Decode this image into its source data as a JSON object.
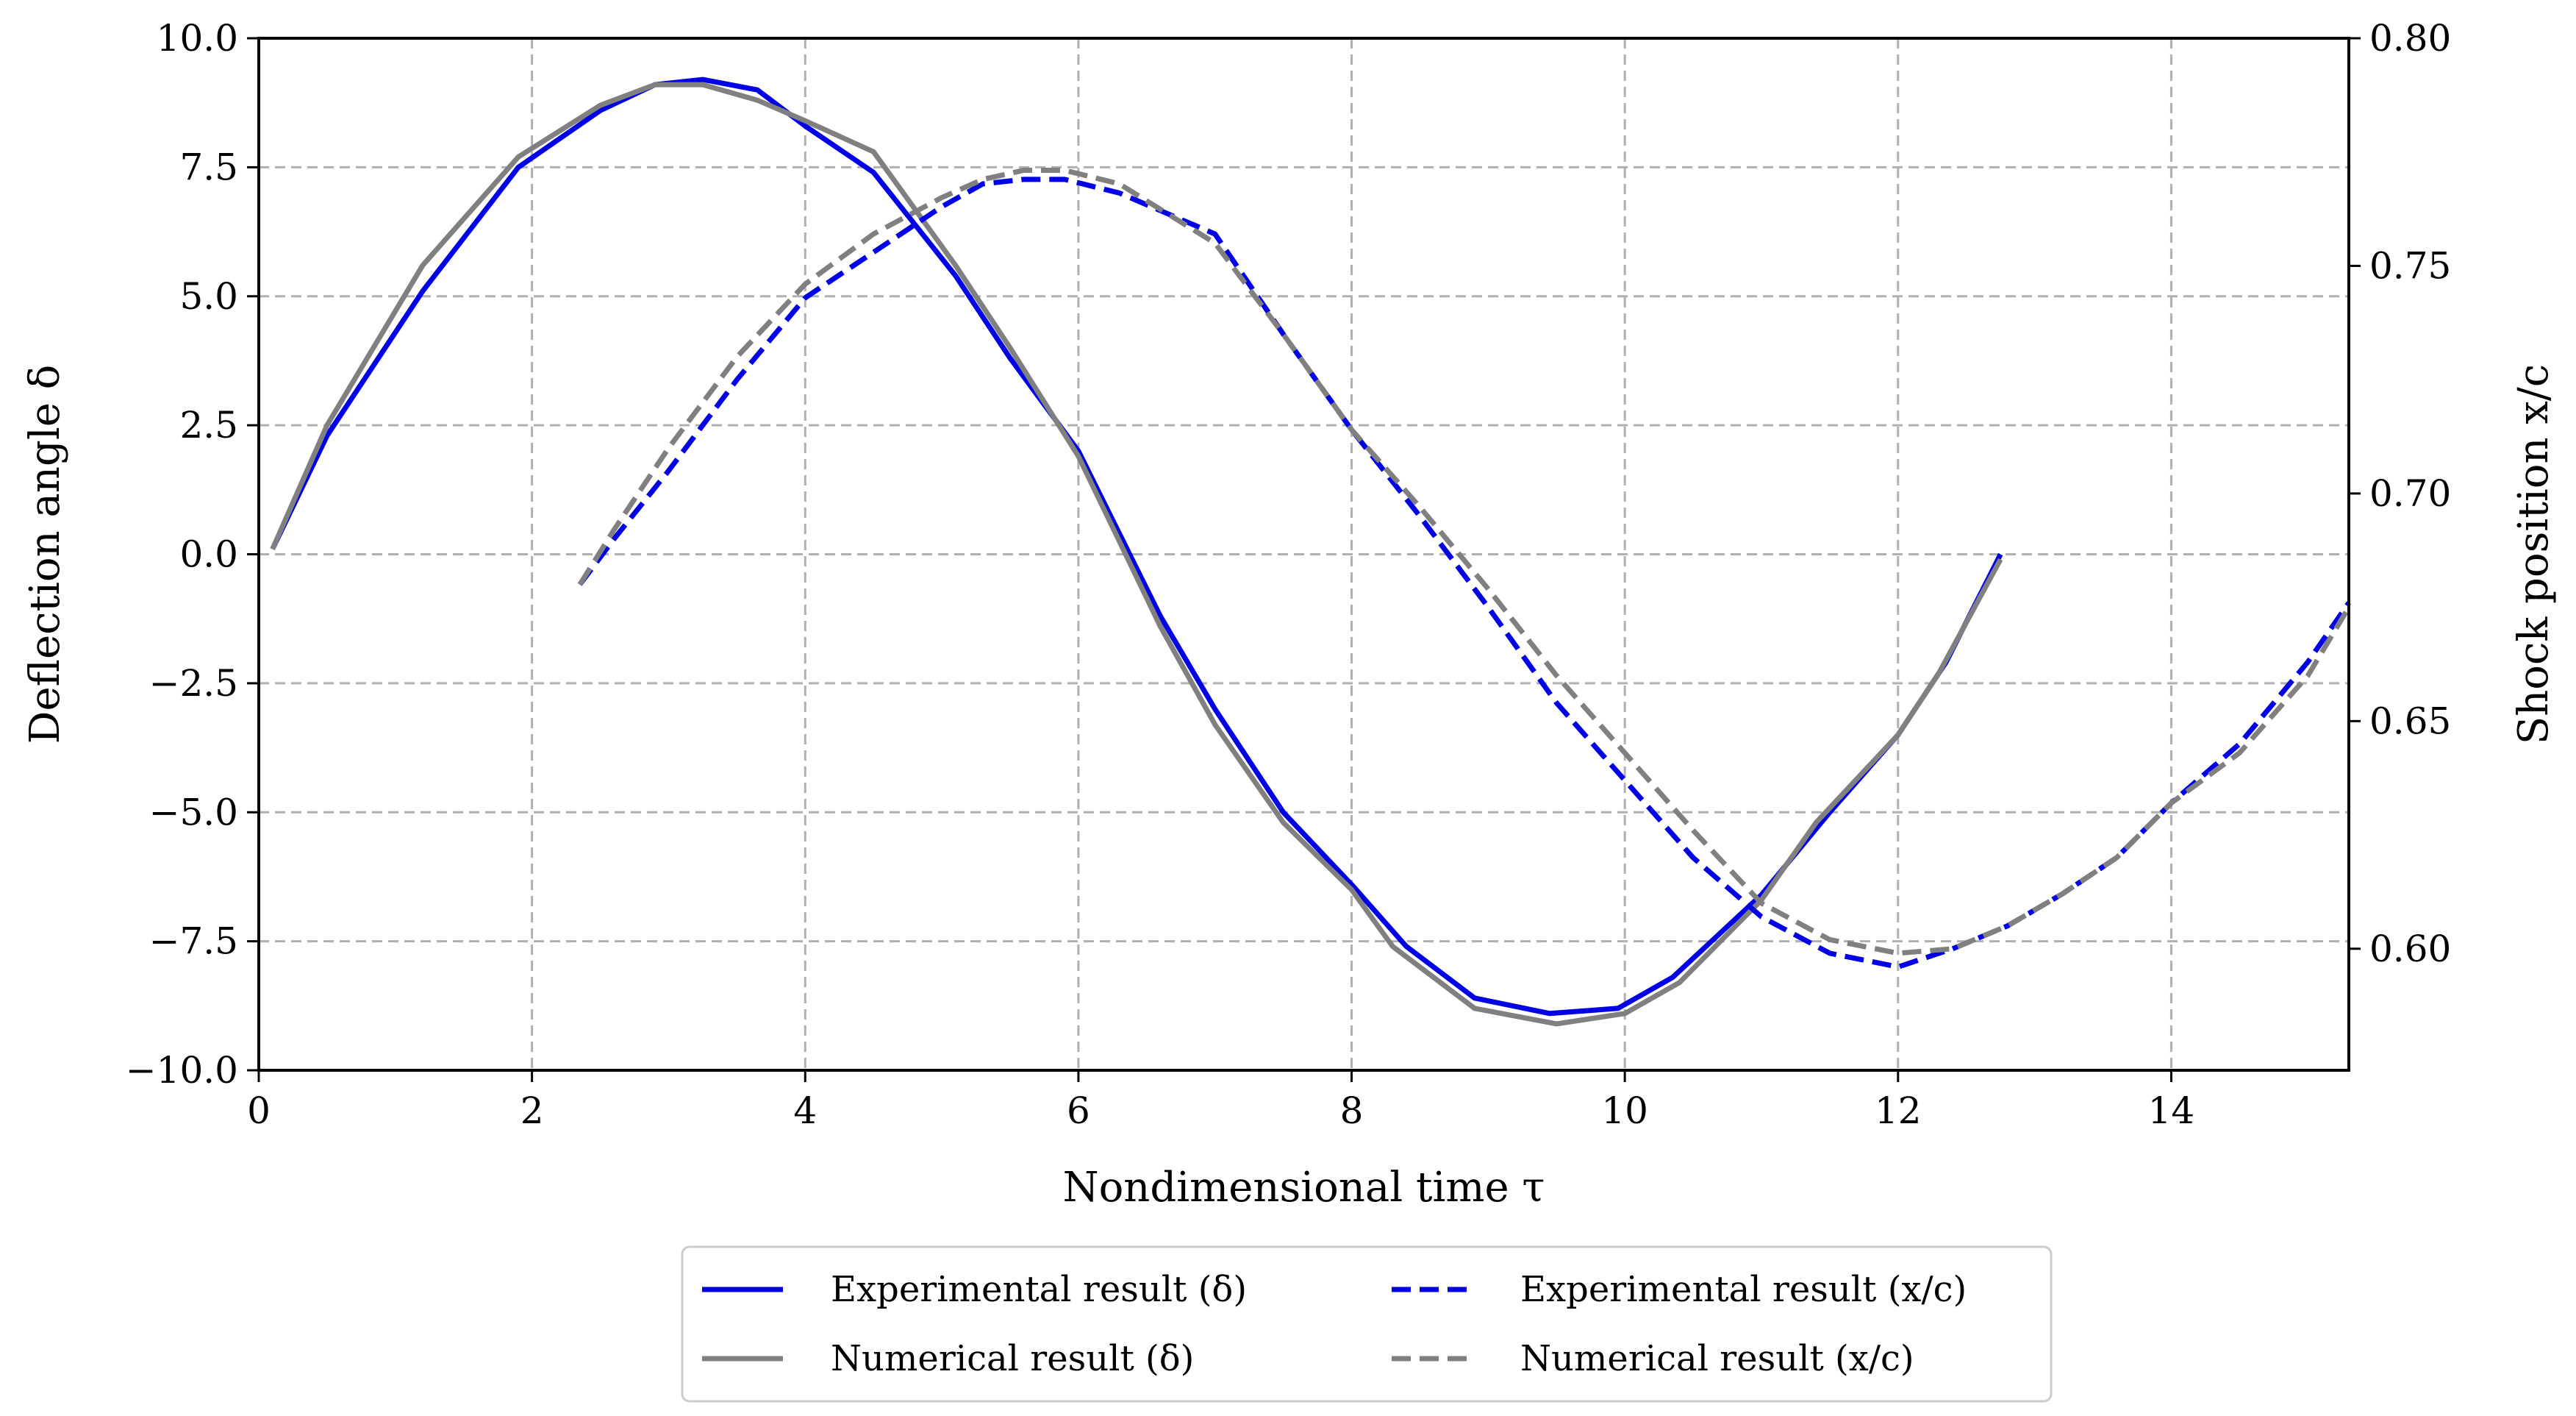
{
  "chart_data": {
    "type": "line",
    "xlabel": "Nondimensional time τ",
    "ylabel_left": "Deflection angle δ",
    "ylabel_right": "Shock position x/c",
    "xlim": [
      0,
      15.3
    ],
    "ylim_left": [
      -10,
      10
    ],
    "ylim_right": [
      0.5733,
      0.8
    ],
    "grid": true,
    "legend_position": "bottom-center",
    "x_ticks": [
      "0",
      "2",
      "4",
      "6",
      "8",
      "10",
      "12",
      "14"
    ],
    "y_left_ticks": [
      "10.0",
      "7.5",
      "5.0",
      "2.5",
      "0.0",
      "−2.5",
      "−5.0",
      "−7.5",
      "−10.0"
    ],
    "y_right_ticks": [
      "0.80",
      "0.75",
      "0.70",
      "0.65",
      "0.60"
    ],
    "series": [
      {
        "name": "Experimental result (δ)",
        "axis": "left",
        "color": "#0000e6",
        "style": "solid",
        "x": [
          0.1,
          0.5,
          1.2,
          1.9,
          2.5,
          2.9,
          3.25,
          3.65,
          4.0,
          4.5,
          5.1,
          5.5,
          6.0,
          6.6,
          7.0,
          7.5,
          8.0,
          8.4,
          8.9,
          9.45,
          9.95,
          10.35,
          11.0,
          11.5,
          12.0,
          12.35,
          12.75
        ],
        "values": [
          0.1,
          2.3,
          5.1,
          7.5,
          8.6,
          9.1,
          9.2,
          9.0,
          8.3,
          7.4,
          5.4,
          3.8,
          2.0,
          -1.2,
          -3.0,
          -5.0,
          -6.4,
          -7.6,
          -8.6,
          -8.9,
          -8.8,
          -8.2,
          -6.6,
          -5.0,
          -3.5,
          -2.1,
          0.0
        ]
      },
      {
        "name": "Numerical result (δ)",
        "axis": "left",
        "color": "#808080",
        "style": "solid",
        "x": [
          0.1,
          0.5,
          1.2,
          1.9,
          2.5,
          2.9,
          3.25,
          3.65,
          4.0,
          4.5,
          5.1,
          5.5,
          6.0,
          6.6,
          7.0,
          7.5,
          8.0,
          8.3,
          8.9,
          9.5,
          10.0,
          10.4,
          11.0,
          11.4,
          12.0,
          12.3,
          12.75
        ],
        "values": [
          0.1,
          2.5,
          5.6,
          7.7,
          8.7,
          9.1,
          9.1,
          8.8,
          8.4,
          7.8,
          5.6,
          4.0,
          1.9,
          -1.4,
          -3.3,
          -5.2,
          -6.5,
          -7.6,
          -8.8,
          -9.1,
          -8.9,
          -8.3,
          -6.7,
          -5.2,
          -3.5,
          -2.3,
          -0.1
        ]
      },
      {
        "name": "Experimental result (x/c)",
        "axis": "right",
        "color": "#0000e6",
        "style": "dashed",
        "x": [
          2.35,
          2.6,
          3.0,
          3.5,
          4.0,
          4.5,
          5.0,
          5.3,
          5.6,
          5.9,
          6.3,
          7.0,
          7.5,
          8.0,
          8.5,
          9.0,
          9.5,
          10.0,
          10.5,
          11.0,
          11.5,
          12.0,
          12.4,
          12.8,
          13.2,
          13.6,
          14.0,
          14.5,
          15.0,
          15.3
        ],
        "values": [
          0.68,
          0.69,
          0.705,
          0.725,
          0.743,
          0.753,
          0.763,
          0.768,
          0.769,
          0.769,
          0.766,
          0.757,
          0.735,
          0.714,
          0.695,
          0.675,
          0.654,
          0.637,
          0.62,
          0.607,
          0.599,
          0.596,
          0.6,
          0.605,
          0.612,
          0.62,
          0.632,
          0.645,
          0.663,
          0.676
        ]
      },
      {
        "name": "Numerical result (x/c)",
        "axis": "right",
        "color": "#808080",
        "style": "dashed",
        "x": [
          2.35,
          2.6,
          3.0,
          3.5,
          4.0,
          4.5,
          5.0,
          5.3,
          5.6,
          5.9,
          6.3,
          7.0,
          7.5,
          8.0,
          8.5,
          9.0,
          9.5,
          10.0,
          10.5,
          11.0,
          11.5,
          12.0,
          12.4,
          12.8,
          13.2,
          13.6,
          14.0,
          14.5,
          15.0,
          15.3
        ],
        "values": [
          0.68,
          0.692,
          0.71,
          0.73,
          0.746,
          0.757,
          0.765,
          0.769,
          0.771,
          0.771,
          0.768,
          0.755,
          0.735,
          0.714,
          0.697,
          0.679,
          0.66,
          0.643,
          0.626,
          0.61,
          0.602,
          0.599,
          0.6,
          0.605,
          0.612,
          0.62,
          0.632,
          0.643,
          0.66,
          0.675
        ]
      }
    ],
    "legend": [
      {
        "label": "Experimental result (δ)",
        "color": "#0000e6",
        "style": "solid"
      },
      {
        "label": "Experimental result (x/c)",
        "color": "#0000e6",
        "style": "dashed"
      },
      {
        "label": "Numerical result (δ)",
        "color": "#808080",
        "style": "solid"
      },
      {
        "label": "Numerical result (x/c)",
        "color": "#808080",
        "style": "dashed"
      }
    ]
  }
}
